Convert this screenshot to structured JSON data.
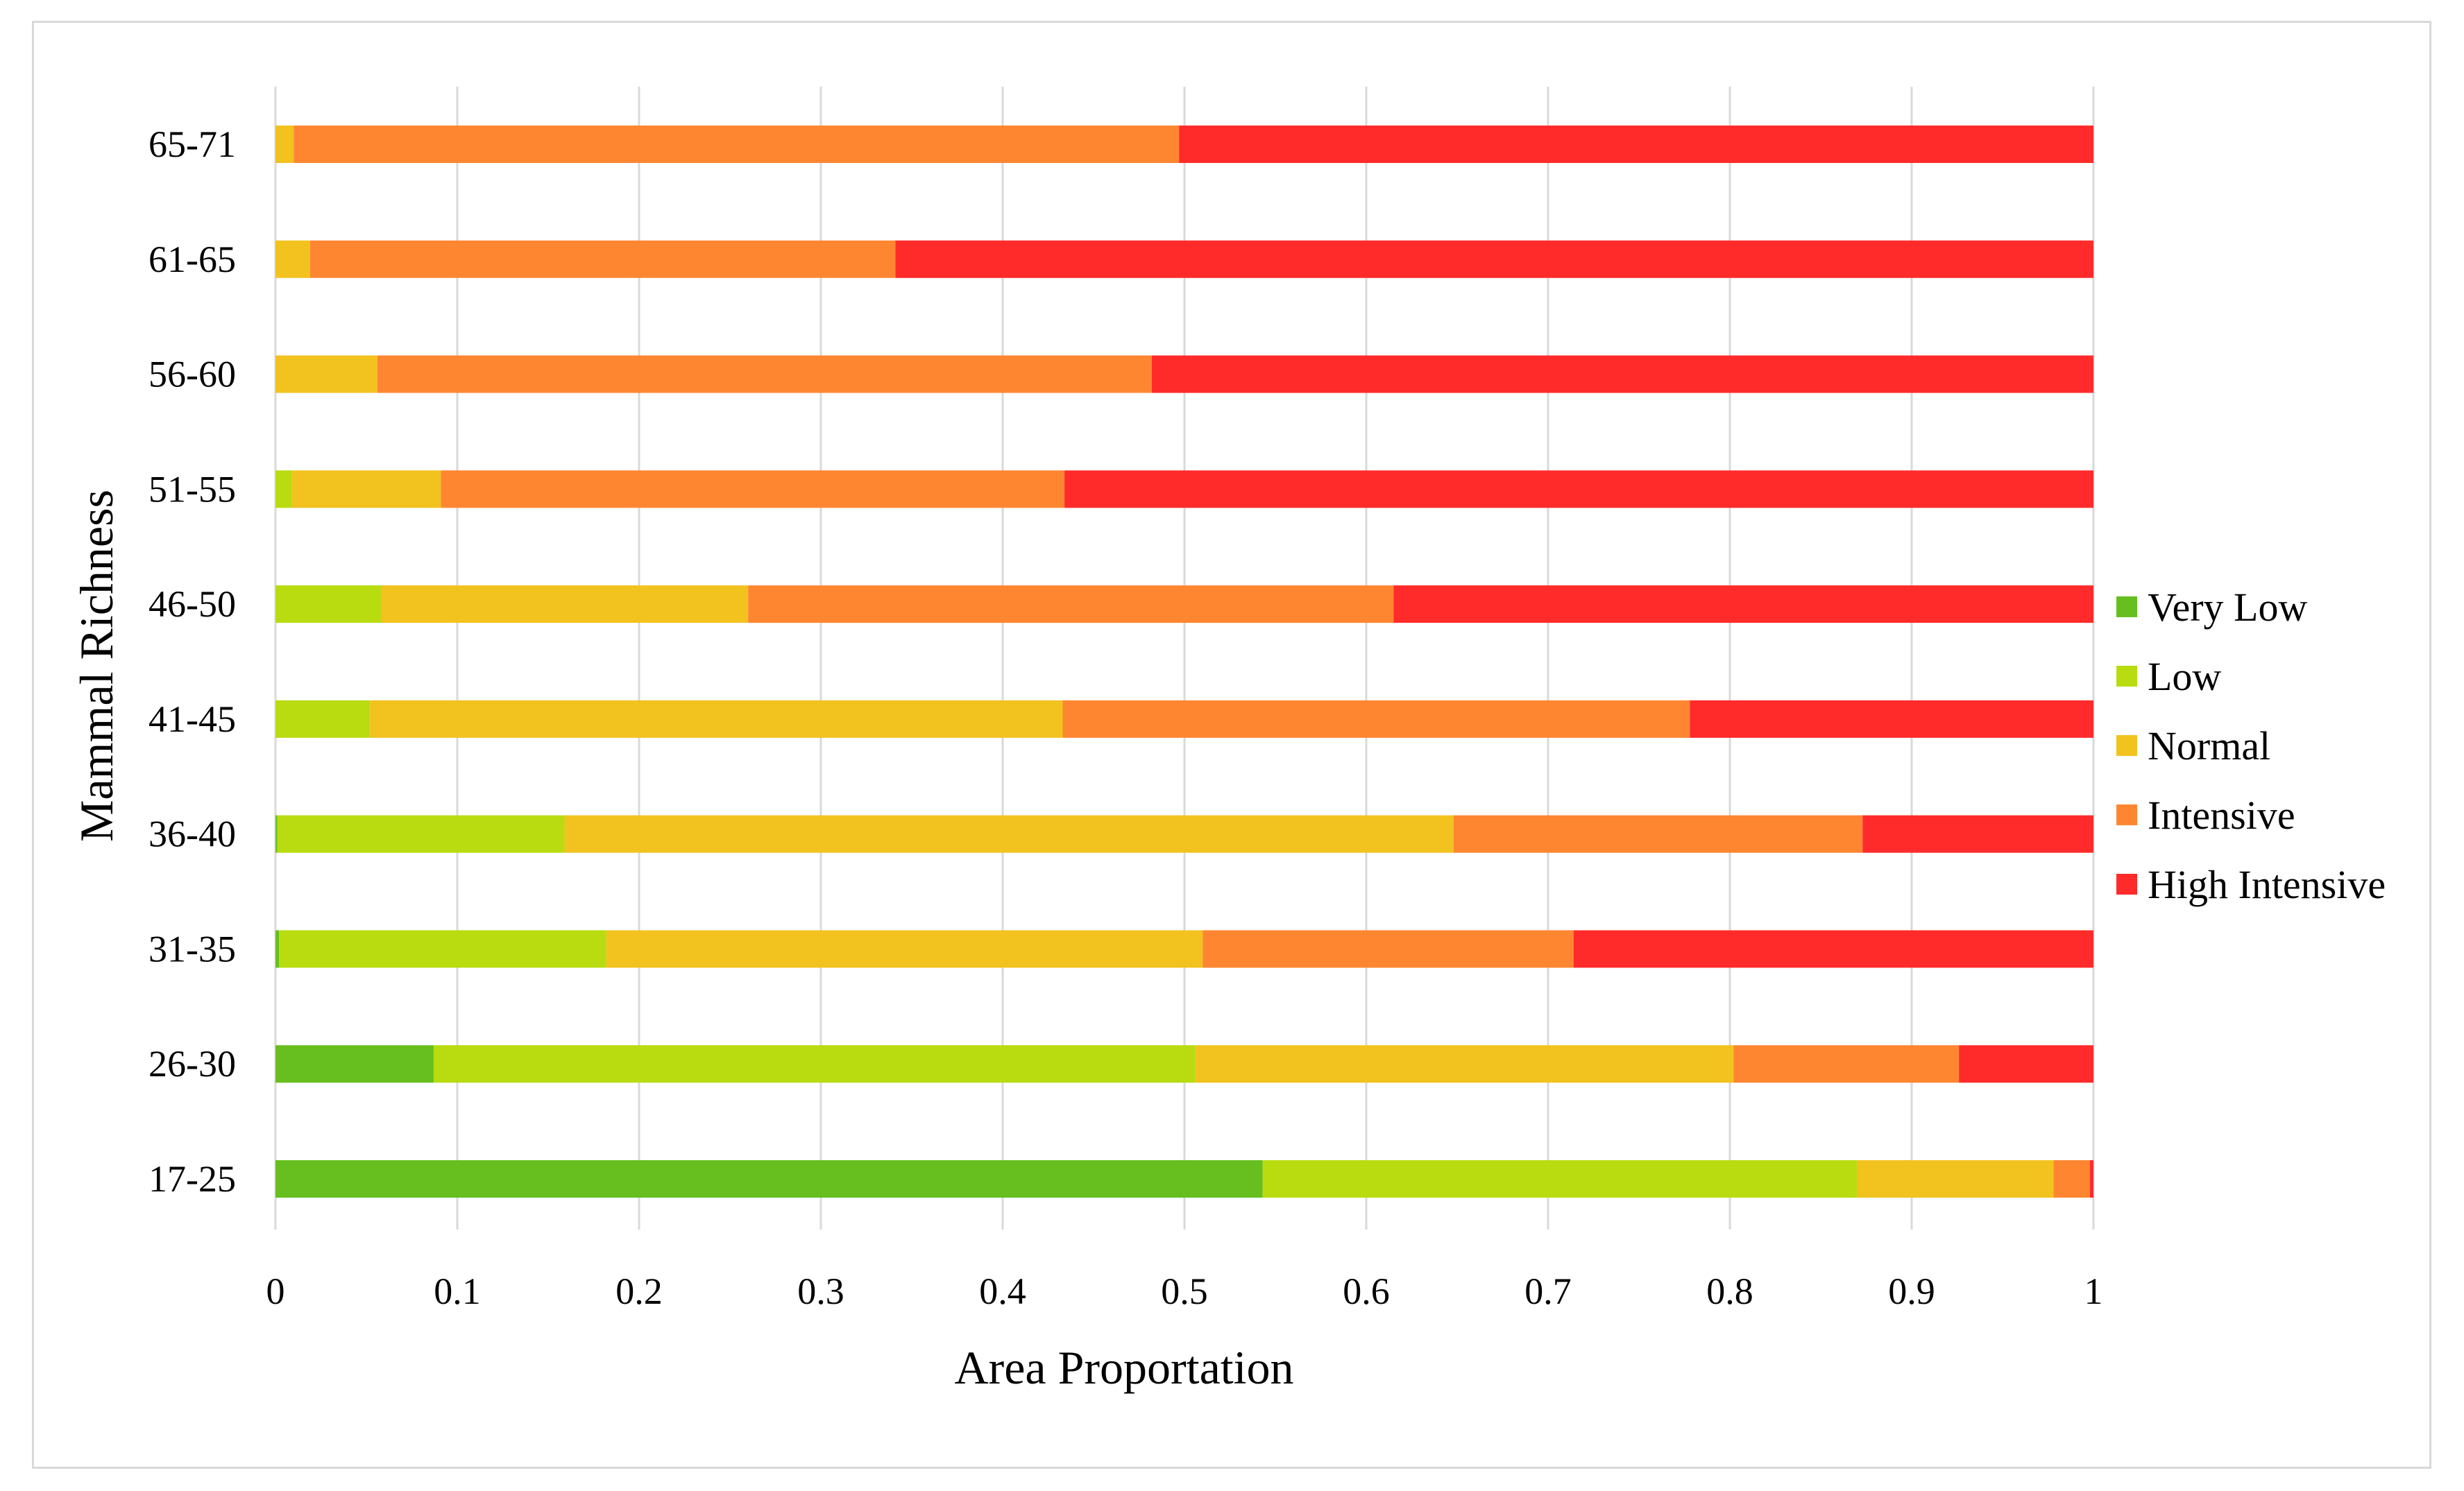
{
  "chart_data": {
    "type": "bar",
    "orientation": "horizontal",
    "stacked": true,
    "title": "",
    "xlabel": "Area Proportation",
    "ylabel": "Mammal Richness",
    "xlim": [
      0,
      1
    ],
    "xticks": [
      "0",
      "0.1",
      "0.2",
      "0.3",
      "0.4",
      "0.5",
      "0.6",
      "0.7",
      "0.8",
      "0.9",
      "1"
    ],
    "grid": "vertical",
    "legend_position": "right",
    "categories": [
      "17-25",
      "26-30",
      "31-35",
      "36-40",
      "41-45",
      "46-50",
      "51-55",
      "56-60",
      "61-65",
      "65-71"
    ],
    "series": [
      {
        "name": "Very Low",
        "color": "#66bf1e",
        "values": [
          0.543,
          0.087,
          0.002,
          0.001,
          0.0,
          0.0,
          0.0,
          0.0,
          0.0,
          0.0
        ]
      },
      {
        "name": "Low",
        "color": "#b8dc10",
        "values": [
          0.327,
          0.419,
          0.18,
          0.158,
          0.052,
          0.058,
          0.009,
          0.0,
          0.0,
          0.0
        ]
      },
      {
        "name": "Normal",
        "color": "#f2c21f",
        "values": [
          0.108,
          0.296,
          0.328,
          0.489,
          0.381,
          0.202,
          0.082,
          0.056,
          0.019,
          0.01
        ]
      },
      {
        "name": "Intensive",
        "color": "#ff8631",
        "values": [
          0.02,
          0.124,
          0.204,
          0.225,
          0.345,
          0.355,
          0.343,
          0.426,
          0.322,
          0.487
        ]
      },
      {
        "name": "High Intensive",
        "color": "#ff2b2b",
        "values": [
          0.002,
          0.074,
          0.286,
          0.127,
          0.222,
          0.385,
          0.566,
          0.518,
          0.659,
          0.503
        ]
      }
    ]
  }
}
